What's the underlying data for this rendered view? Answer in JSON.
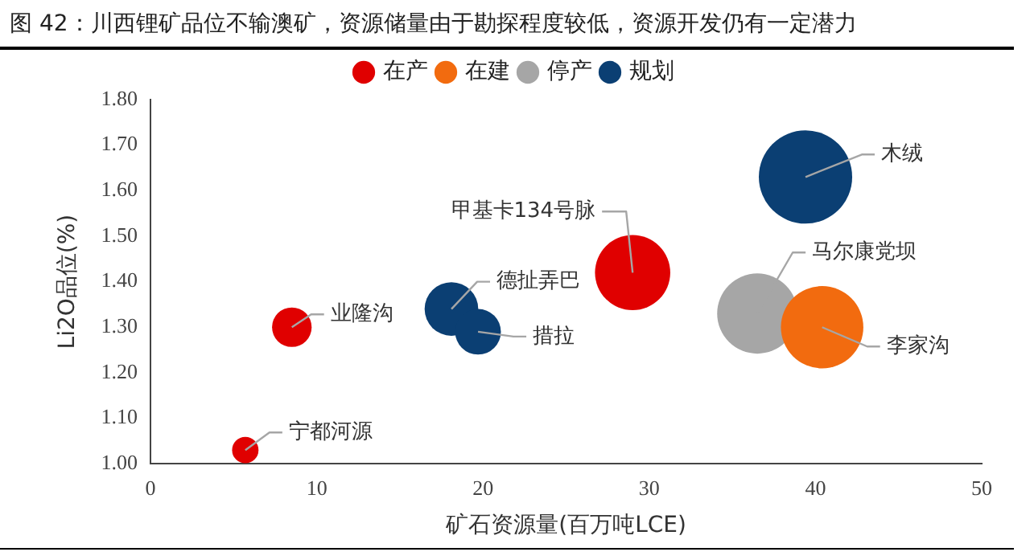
{
  "chart_data": {
    "type": "bubble",
    "title": "图 42：川西锂矿品位不输澳矿，资源储量由于勘探程度较低，资源开发仍有一定潜力",
    "xlabel": "矿石资源量(百万吨LCE)",
    "ylabel": "Li2O品位(%)",
    "series": [
      {
        "name": "在产",
        "color": "#e00000",
        "x": [
          5.7,
          8.5,
          29.0
        ],
        "values": [
          1.03,
          1.3,
          1.42
        ],
        "sizes": [
          0.08,
          0.18,
          0.65
        ]
      },
      {
        "name": "在建",
        "color": "#f26b0f",
        "x": [
          40.4
        ],
        "values": [
          1.3
        ],
        "sizes": [
          0.78
        ]
      },
      {
        "name": "停产",
        "color": "#a6a6a6",
        "x": [
          36.5
        ],
        "values": [
          1.33
        ],
        "sizes": [
          0.74
        ]
      },
      {
        "name": "规划",
        "color": "#0b3f73",
        "x": [
          18.1,
          19.7,
          39.4
        ],
        "values": [
          1.34,
          1.29,
          1.63
        ],
        "sizes": [
          0.33,
          0.24,
          1
        ]
      }
    ],
    "annotations": [
      {
        "text": "宁都河源",
        "x": 5.7,
        "y": 1.03
      },
      {
        "text": "业隆沟",
        "x": 8.5,
        "y": 1.3
      },
      {
        "text": "德扯弄巴",
        "x": 18.1,
        "y": 1.34
      },
      {
        "text": "措拉",
        "x": 19.7,
        "y": 1.29
      },
      {
        "text": "甲基卡134号脉",
        "x": 29.0,
        "y": 1.42
      },
      {
        "text": "木绒",
        "x": 39.4,
        "y": 1.63
      },
      {
        "text": "马尔康党坝",
        "x": 36.5,
        "y": 1.33
      },
      {
        "text": "李家沟",
        "x": 40.4,
        "y": 1.3
      }
    ],
    "xlim": [
      0,
      50
    ],
    "xticks": [
      0,
      10,
      20,
      30,
      40,
      50
    ],
    "ylim": [
      1.0,
      1.8
    ],
    "yticks": [
      {
        "value": 1.0,
        "label": "1.00"
      },
      {
        "value": 1.1,
        "label": "1.10"
      },
      {
        "value": 1.2,
        "label": "1.20"
      },
      {
        "value": 1.3,
        "label": "1.30"
      },
      {
        "value": 1.4,
        "label": "1.40"
      },
      {
        "value": 1.5,
        "label": "1.50"
      },
      {
        "value": 1.6,
        "label": "1.60"
      },
      {
        "value": 1.7,
        "label": "1.70"
      },
      {
        "value": 1.8,
        "label": "1.80"
      }
    ],
    "grid": false,
    "legend": "top"
  }
}
